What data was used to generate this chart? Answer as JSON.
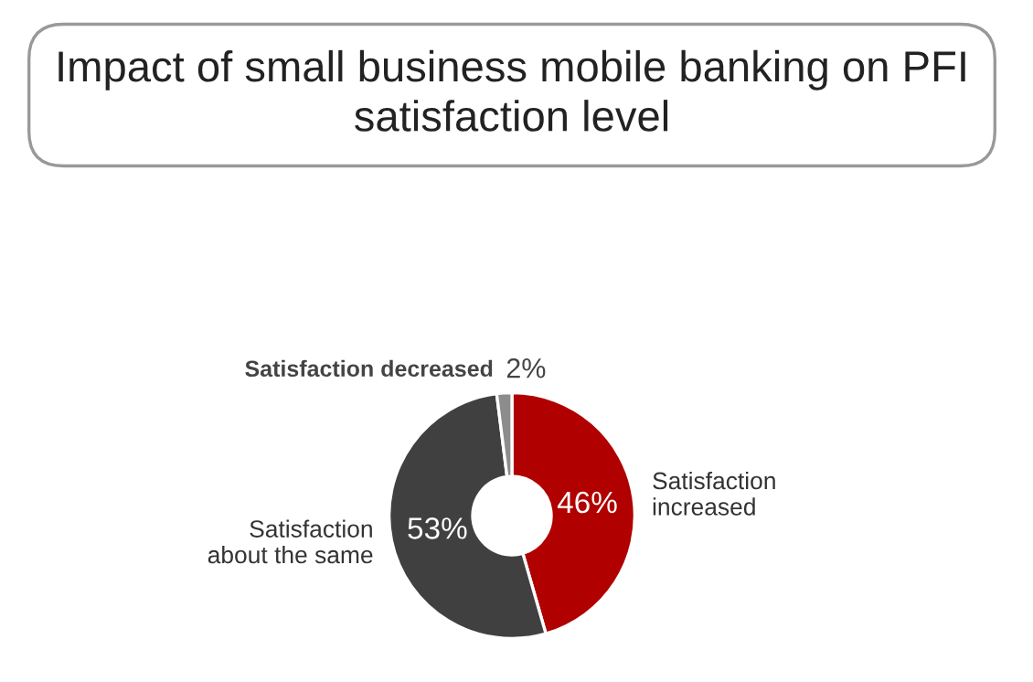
{
  "chart_data": {
    "type": "donut",
    "title": "Impact of small business mobile banking on PFI satisfaction level",
    "categories": [
      "Satisfaction increased",
      "Satisfaction about the same",
      "Satisfaction decreased"
    ],
    "values": [
      46,
      53,
      2
    ],
    "value_labels": [
      "46%",
      "53%",
      "2%"
    ],
    "colors": [
      "#b00000",
      "#404040",
      "#8c8c8c"
    ],
    "legend": false
  }
}
